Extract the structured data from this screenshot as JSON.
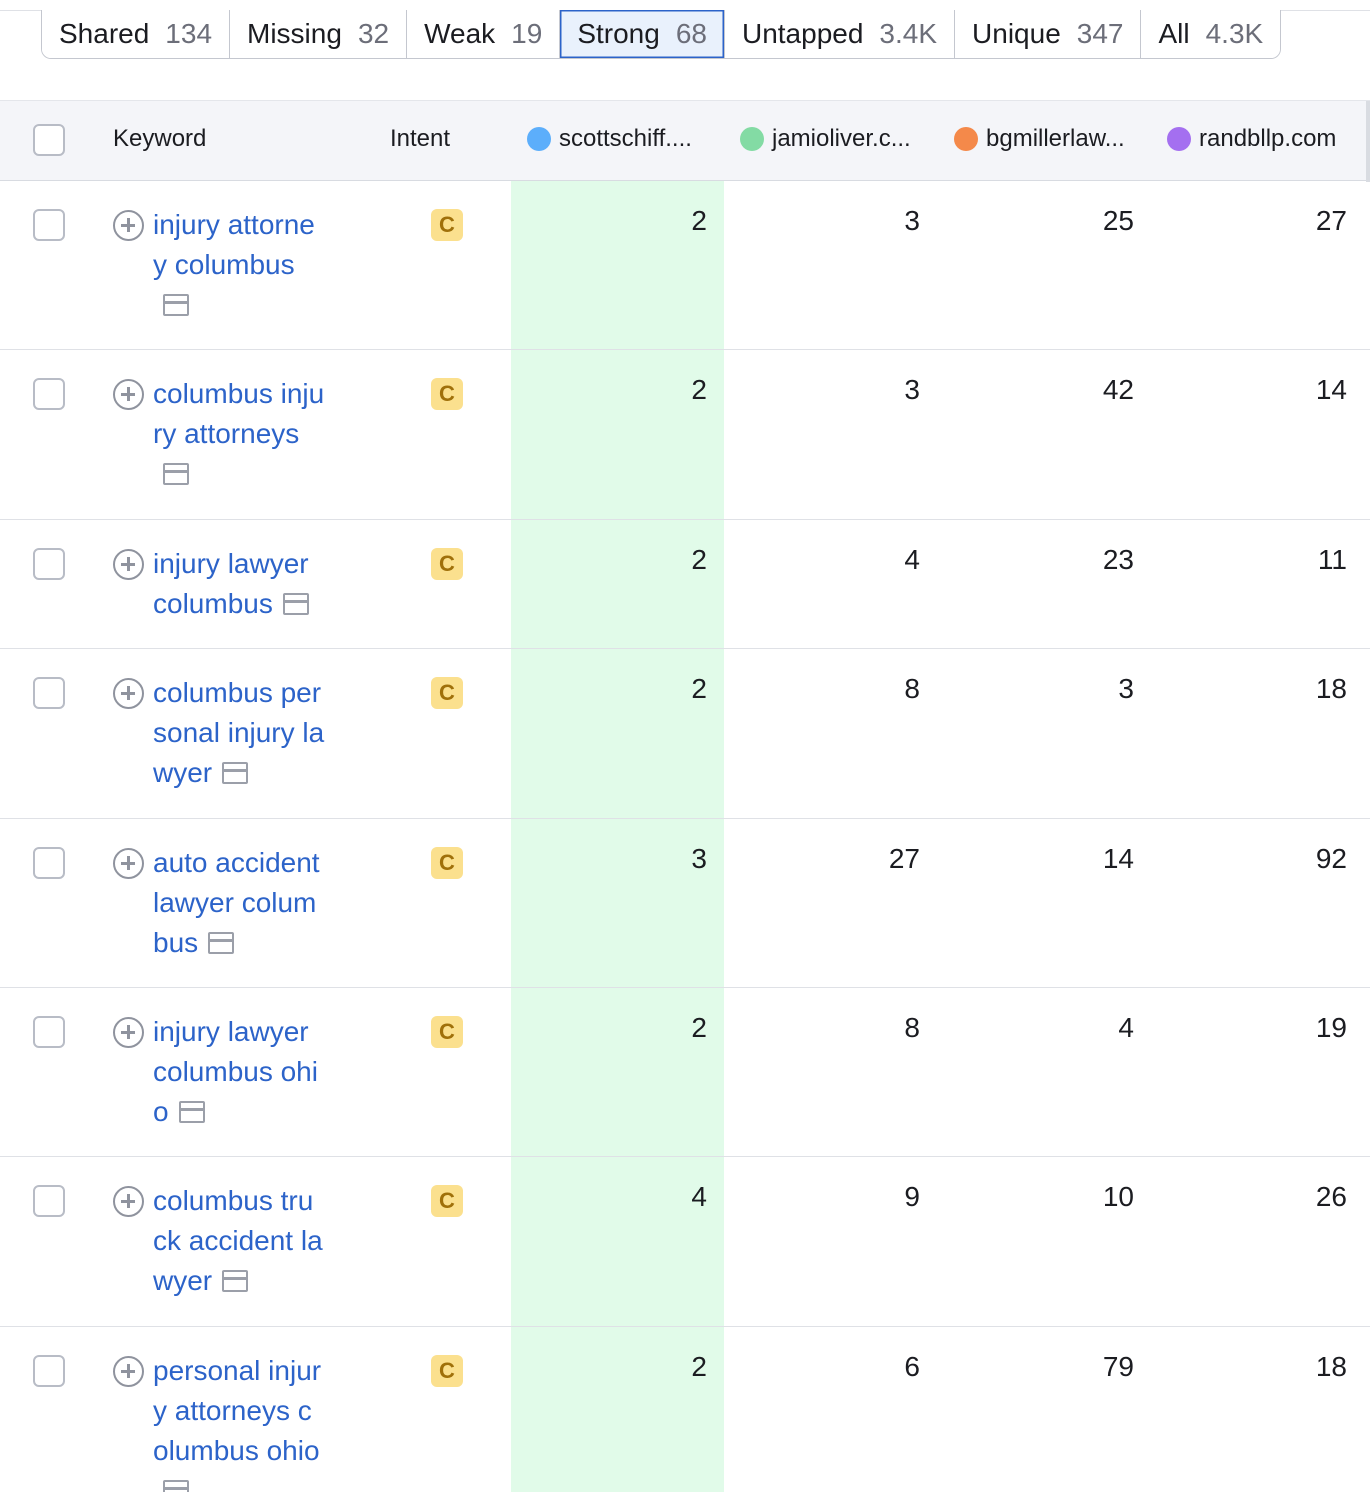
{
  "tabs": [
    {
      "label": "Shared",
      "count": "134"
    },
    {
      "label": "Missing",
      "count": "32"
    },
    {
      "label": "Weak",
      "count": "19"
    },
    {
      "label": "Strong",
      "count": "68"
    },
    {
      "label": "Untapped",
      "count": "3.4K"
    },
    {
      "label": "Unique",
      "count": "347"
    },
    {
      "label": "All",
      "count": "4.3K"
    }
  ],
  "active_tab": "Strong",
  "header": {
    "keyword": "Keyword",
    "intent": "Intent",
    "domains": [
      {
        "label": "scottschiff....",
        "color": "#5caefb"
      },
      {
        "label": "jamioliver.c...",
        "color": "#83dba4"
      },
      {
        "label": "bgmillerlaw...",
        "color": "#f4894a"
      },
      {
        "label": "randbllp.com",
        "color": "#a46ff0"
      }
    ]
  },
  "rows": [
    {
      "keyword": "injury attorney columbus",
      "intent": "C",
      "values": [
        "2",
        "3",
        "25",
        "27"
      ]
    },
    {
      "keyword": "columbus injury attorneys",
      "intent": "C",
      "values": [
        "2",
        "3",
        "42",
        "14"
      ]
    },
    {
      "keyword": "injury lawyer columbus",
      "intent": "C",
      "values": [
        "2",
        "4",
        "23",
        "11"
      ]
    },
    {
      "keyword": "columbus personal injury lawyer",
      "intent": "C",
      "values": [
        "2",
        "8",
        "3",
        "18"
      ]
    },
    {
      "keyword": "auto accident lawyer columbus",
      "intent": "C",
      "values": [
        "3",
        "27",
        "14",
        "92"
      ]
    },
    {
      "keyword": "injury lawyer columbus ohio",
      "intent": "C",
      "values": [
        "2",
        "8",
        "4",
        "19"
      ]
    },
    {
      "keyword": "columbus truck accident lawyer",
      "intent": "C",
      "values": [
        "4",
        "9",
        "10",
        "26"
      ]
    },
    {
      "keyword": "personal injury attorneys columbus ohio",
      "intent": "C",
      "values": [
        "2",
        "6",
        "79",
        "18"
      ]
    }
  ]
}
